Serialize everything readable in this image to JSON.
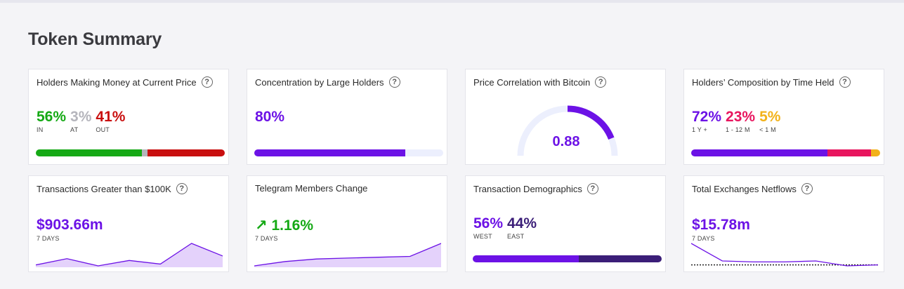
{
  "page_title": "Token Summary",
  "help_symbol": "?",
  "colors": {
    "green": "#15a915",
    "gray": "#b5b5bc",
    "red": "#c90f0f",
    "purple": "#6c12e6",
    "pink": "#e8155e",
    "amber": "#f2b21a",
    "navy": "#3b1e78",
    "track": "#eceffd"
  },
  "cards": {
    "holders_money": {
      "title": "Holders Making Money at Current Price",
      "in": {
        "value": "56%",
        "label": "IN"
      },
      "at": {
        "value": "3%",
        "label": "AT"
      },
      "out": {
        "value": "41%",
        "label": "OUT"
      },
      "bar_fractions": [
        0.56,
        0.03,
        0.41
      ]
    },
    "concentration": {
      "title": "Concentration by Large Holders",
      "value": "80%",
      "bar_fraction": 0.8
    },
    "price_correlation": {
      "title": "Price Correlation with Bitcoin",
      "value": "0.88",
      "gauge_fraction": 0.88
    },
    "holders_composition": {
      "title": "Holders’ Composition by Time Held",
      "long": {
        "value": "72%",
        "label": "1 Y +"
      },
      "mid": {
        "value": "23%",
        "label": "1 - 12 M"
      },
      "short": {
        "value": "5%",
        "label": "< 1 M"
      },
      "bar_fractions": [
        0.72,
        0.23,
        0.05
      ]
    },
    "large_tx": {
      "title": "Transactions Greater than $100K",
      "value": "$903.66m",
      "period": "7 DAYS",
      "spark": [
        2,
        9,
        1,
        7,
        3,
        26,
        12
      ]
    },
    "telegram": {
      "title": "Telegram Members Change",
      "arrow": "↗",
      "value": "1.16%",
      "period": "7 DAYS",
      "spark": [
        0,
        5,
        8,
        9,
        10,
        11,
        26
      ]
    },
    "tx_demographics": {
      "title": "Transaction Demographics",
      "west": {
        "value": "56%",
        "label": "WEST"
      },
      "east": {
        "value": "44%",
        "label": "EAST"
      },
      "bar_fractions": [
        0.56,
        0.44
      ]
    },
    "exchange_netflows": {
      "title": "Total Exchanges Netflows",
      "value": "$15.78m",
      "period": "7 DAYS",
      "spark": [
        22,
        4,
        3,
        3,
        4,
        -1,
        0
      ]
    }
  }
}
